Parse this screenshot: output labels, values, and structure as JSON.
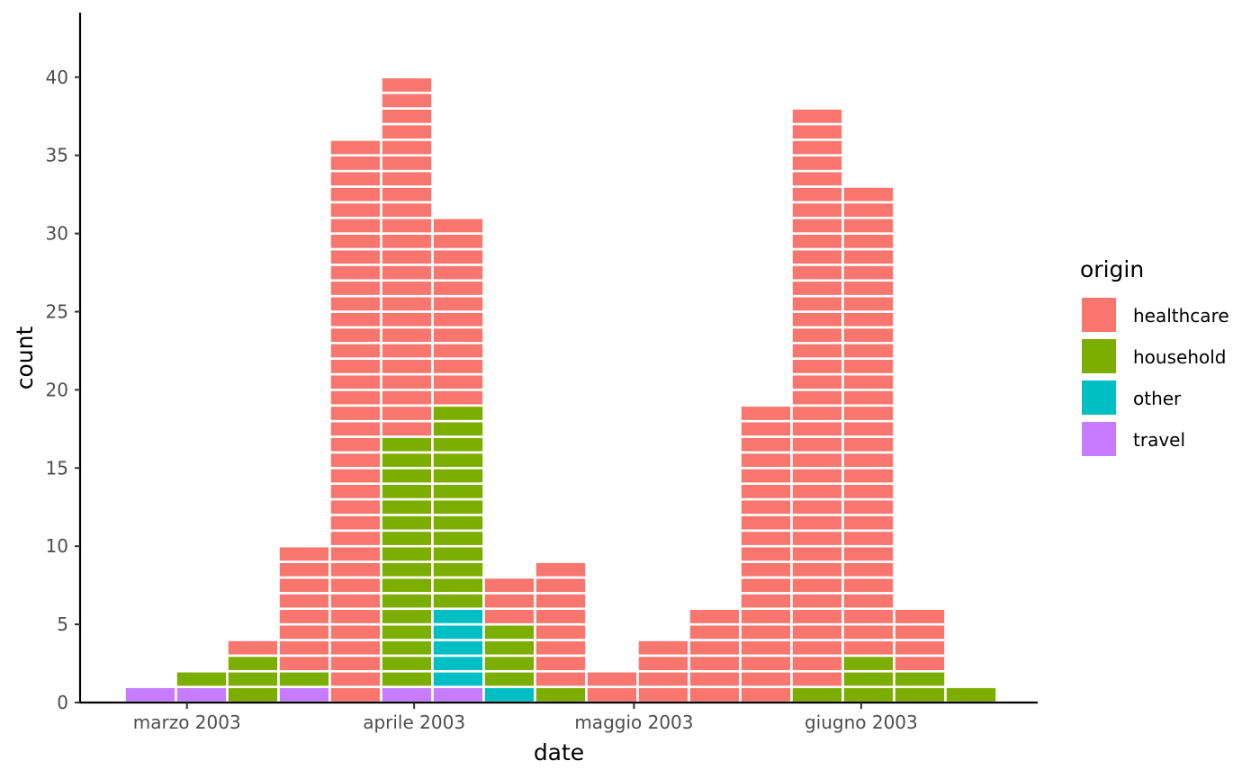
{
  "chart_data": {
    "type": "bar",
    "stacked": true,
    "bar_style": "unit-blocks",
    "xlabel": "date",
    "ylabel": "count",
    "ylim": [
      0,
      43
    ],
    "y_ticks": [
      0,
      5,
      10,
      15,
      20,
      25,
      30,
      35,
      40
    ],
    "x_ticks": [
      "marzo 2003",
      "aprile 2003",
      "maggio 2003",
      "giugno 2003"
    ],
    "grid": false,
    "legend": {
      "title": "origin",
      "position": "right"
    },
    "categories": [
      "2003-02-24",
      "2003-03-03",
      "2003-03-10",
      "2003-03-17",
      "2003-03-24",
      "2003-03-31",
      "2003-04-07",
      "2003-04-14",
      "2003-04-21",
      "2003-04-28",
      "2003-05-05",
      "2003-05-12",
      "2003-05-19",
      "2003-05-26",
      "2003-06-02",
      "2003-06-09",
      "2003-06-16"
    ],
    "series": [
      {
        "name": "travel",
        "color": "#C77CFF",
        "values": [
          1,
          1,
          0,
          1,
          0,
          1,
          1,
          0,
          0,
          0,
          0,
          0,
          0,
          0,
          0,
          0,
          0
        ]
      },
      {
        "name": "other",
        "color": "#00BFC4",
        "values": [
          0,
          0,
          0,
          0,
          0,
          0,
          5,
          1,
          0,
          0,
          0,
          0,
          0,
          0,
          0,
          0,
          0
        ]
      },
      {
        "name": "household",
        "color": "#7CAE00",
        "values": [
          0,
          1,
          3,
          1,
          0,
          16,
          13,
          4,
          1,
          0,
          0,
          0,
          0,
          1,
          3,
          2,
          1
        ]
      },
      {
        "name": "healthcare",
        "color": "#F8766D",
        "values": [
          0,
          0,
          1,
          8,
          36,
          23,
          12,
          3,
          8,
          2,
          4,
          6,
          19,
          37,
          30,
          4,
          0
        ]
      }
    ]
  }
}
